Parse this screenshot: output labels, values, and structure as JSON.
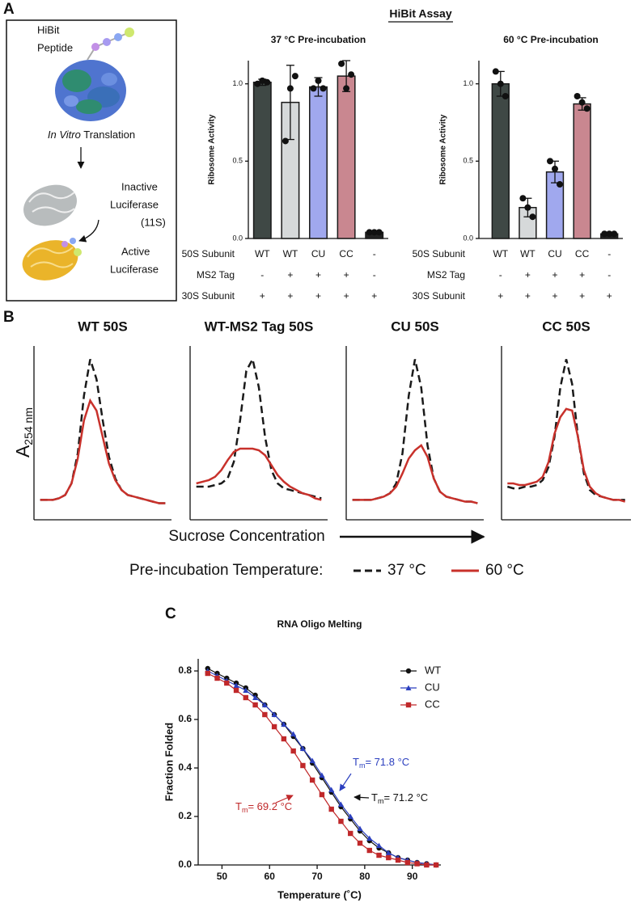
{
  "panel_labels": [
    "A",
    "B",
    "C"
  ],
  "schematic": {
    "peptide": [
      "HiBit",
      "Peptide"
    ],
    "translation": {
      "italic": "In Vitro",
      "text": "Translation"
    },
    "inactive": [
      "Inactive",
      "Luciferase",
      "(11S)"
    ],
    "active": [
      "Active",
      "Luciferase"
    ]
  },
  "hibit_title": "HiBit Assay",
  "panel_b": {
    "y_label": {
      "text": "A",
      "subscript": "254 nm"
    },
    "x_label": "Sucrose Concentration",
    "legend": {
      "title": "Pre-incubation Temperature:",
      "entries": [
        {
          "name": "37 °C",
          "color": "#1a1a1a",
          "dash": true
        },
        {
          "name": "60 °C",
          "color": "#c8312b",
          "dash": false
        }
      ]
    }
  },
  "chart_data": [
    {
      "type": "bar",
      "title": "37 °C Pre-incubation",
      "y_label": "Ribosome Activity",
      "category_label": "50S Subunit",
      "categories": [
        "WT",
        "WT",
        "CU",
        "CC",
        "-"
      ],
      "extra_rows": [
        {
          "label": "MS2 Tag",
          "cells": [
            "-",
            "+",
            "+",
            "+",
            "-"
          ]
        },
        {
          "label": "30S Subunit",
          "cells": [
            "+",
            "+",
            "+",
            "+",
            "+"
          ]
        }
      ],
      "values": [
        1.01,
        0.88,
        0.98,
        1.05,
        0.04
      ],
      "errors": [
        0.02,
        0.24,
        0.06,
        0.1,
        0.01
      ],
      "points": [
        [
          1.0,
          1.02,
          1.01
        ],
        [
          0.63,
          0.97,
          1.05
        ],
        [
          0.97,
          1.02,
          0.97
        ],
        [
          1.13,
          0.97,
          1.06
        ],
        [
          0.04,
          0.04,
          0.04
        ]
      ],
      "colors": [
        "#3f4845",
        "#d6d9da",
        "#a0a8ee",
        "#c98790",
        "#222222"
      ],
      "ylim": [
        0,
        1.15
      ],
      "yticks": [
        {
          "value": 0,
          "label": "0.0"
        },
        {
          "value": 0.5,
          "label": "0.5"
        },
        {
          "value": 1,
          "label": "1.0"
        }
      ]
    },
    {
      "type": "bar",
      "title": "60 °C Pre-incubation",
      "y_label": "Ribosome Activity",
      "category_label": "50S Subunit",
      "categories": [
        "WT",
        "WT",
        "CU",
        "CC",
        "-"
      ],
      "extra_rows": [
        {
          "label": "MS2 Tag",
          "cells": [
            "-",
            "+",
            "+",
            "+",
            "-"
          ]
        },
        {
          "label": "30S Subunit",
          "cells": [
            "+",
            "+",
            "+",
            "+",
            "+"
          ]
        }
      ],
      "values": [
        1.0,
        0.2,
        0.43,
        0.87,
        0.03
      ],
      "errors": [
        0.08,
        0.06,
        0.07,
        0.04,
        0.01
      ],
      "points": [
        [
          1.08,
          1.0,
          0.92
        ],
        [
          0.26,
          0.2,
          0.14
        ],
        [
          0.5,
          0.45,
          0.35
        ],
        [
          0.92,
          0.88,
          0.84
        ],
        [
          0.03,
          0.03,
          0.03
        ]
      ],
      "colors": [
        "#3f4845",
        "#d6d9da",
        "#a0a8ee",
        "#c98790",
        "#222222"
      ],
      "ylim": [
        0,
        1.15
      ],
      "yticks": [
        {
          "value": 0,
          "label": "0.0"
        },
        {
          "value": 0.5,
          "label": "0.5"
        },
        {
          "value": 1,
          "label": "1.0"
        }
      ]
    },
    {
      "type": "line",
      "title": "WT 50S",
      "x": [
        0,
        1,
        2,
        3,
        4,
        5,
        6,
        7,
        8,
        9,
        10,
        11,
        12,
        13,
        14,
        15,
        16,
        17,
        18,
        19,
        20
      ],
      "xlim": [
        -1,
        21
      ],
      "ylim": [
        0,
        1.05
      ],
      "series": [
        {
          "color": "#1a1a1a",
          "dash": true,
          "values": [
            0.12,
            0.12,
            0.12,
            0.13,
            0.15,
            0.22,
            0.4,
            0.75,
            0.97,
            0.85,
            0.6,
            0.38,
            0.25,
            0.18,
            0.15,
            0.14,
            0.13,
            0.12,
            0.11,
            0.1,
            0.1
          ]
        },
        {
          "color": "#c8312b",
          "dash": false,
          "values": [
            0.12,
            0.12,
            0.12,
            0.13,
            0.15,
            0.22,
            0.37,
            0.6,
            0.72,
            0.66,
            0.5,
            0.34,
            0.24,
            0.18,
            0.15,
            0.14,
            0.13,
            0.12,
            0.11,
            0.1,
            0.1
          ]
        }
      ]
    },
    {
      "type": "line",
      "title": "WT-MS2 Tag 50S",
      "x": [
        0,
        1,
        2,
        3,
        4,
        5,
        6,
        7,
        8,
        9,
        10,
        11,
        12,
        13,
        14,
        15,
        16,
        17,
        18,
        19,
        20
      ],
      "xlim": [
        -1,
        21
      ],
      "ylim": [
        0,
        1.05
      ],
      "series": [
        {
          "color": "#1a1a1a",
          "dash": true,
          "values": [
            0.2,
            0.2,
            0.2,
            0.21,
            0.22,
            0.25,
            0.35,
            0.6,
            0.9,
            0.97,
            0.8,
            0.5,
            0.3,
            0.22,
            0.19,
            0.18,
            0.17,
            0.16,
            0.15,
            0.14,
            0.13
          ]
        },
        {
          "color": "#c8312b",
          "dash": false,
          "values": [
            0.22,
            0.23,
            0.24,
            0.26,
            0.3,
            0.36,
            0.41,
            0.43,
            0.43,
            0.43,
            0.42,
            0.39,
            0.33,
            0.27,
            0.23,
            0.2,
            0.18,
            0.16,
            0.15,
            0.13,
            0.12
          ]
        }
      ]
    },
    {
      "type": "line",
      "title": "CU 50S",
      "x": [
        0,
        1,
        2,
        3,
        4,
        5,
        6,
        7,
        8,
        9,
        10,
        11,
        12,
        13,
        14,
        15,
        16,
        17,
        18,
        19,
        20
      ],
      "xlim": [
        -1,
        21
      ],
      "ylim": [
        0,
        1.05
      ],
      "series": [
        {
          "color": "#1a1a1a",
          "dash": true,
          "values": [
            0.12,
            0.12,
            0.12,
            0.12,
            0.13,
            0.14,
            0.16,
            0.22,
            0.4,
            0.75,
            0.97,
            0.8,
            0.45,
            0.25,
            0.17,
            0.14,
            0.13,
            0.12,
            0.11,
            0.11,
            0.1
          ]
        },
        {
          "color": "#c8312b",
          "dash": false,
          "values": [
            0.12,
            0.12,
            0.12,
            0.12,
            0.13,
            0.14,
            0.16,
            0.2,
            0.28,
            0.37,
            0.42,
            0.45,
            0.38,
            0.25,
            0.17,
            0.14,
            0.13,
            0.12,
            0.11,
            0.11,
            0.1
          ]
        }
      ]
    },
    {
      "type": "line",
      "title": "CC 50S",
      "x": [
        0,
        1,
        2,
        3,
        4,
        5,
        6,
        7,
        8,
        9,
        10,
        11,
        12,
        13,
        14,
        15,
        16,
        17,
        18,
        19,
        20
      ],
      "xlim": [
        -1,
        21
      ],
      "ylim": [
        0,
        1.05
      ],
      "series": [
        {
          "color": "#1a1a1a",
          "dash": true,
          "values": [
            0.2,
            0.19,
            0.19,
            0.2,
            0.2,
            0.21,
            0.24,
            0.32,
            0.5,
            0.8,
            0.97,
            0.82,
            0.5,
            0.28,
            0.18,
            0.15,
            0.14,
            0.13,
            0.12,
            0.12,
            0.12
          ]
        },
        {
          "color": "#c8312b",
          "dash": false,
          "values": [
            0.22,
            0.22,
            0.21,
            0.21,
            0.22,
            0.23,
            0.26,
            0.35,
            0.52,
            0.62,
            0.67,
            0.66,
            0.5,
            0.3,
            0.2,
            0.16,
            0.14,
            0.13,
            0.12,
            0.12,
            0.11
          ]
        }
      ]
    },
    {
      "type": "line",
      "title": "RNA Oligo Melting",
      "x_label": "Temperature (˚C)",
      "y_label": "Fraction Folded",
      "x": [
        47,
        49,
        51,
        53,
        55,
        57,
        59,
        61,
        63,
        65,
        67,
        69,
        71,
        73,
        75,
        77,
        79,
        81,
        83,
        85,
        87,
        89,
        91,
        93,
        95
      ],
      "xlim": [
        45,
        96
      ],
      "xticks": [
        50,
        60,
        70,
        80,
        90
      ],
      "ylim": [
        0,
        0.85
      ],
      "yticks": [
        {
          "value": 0,
          "label": "0.0"
        },
        {
          "value": 0.2,
          "label": "0.2"
        },
        {
          "value": 0.4,
          "label": "0.4"
        },
        {
          "value": 0.6,
          "label": "0.6"
        },
        {
          "value": 0.8,
          "label": "0.8"
        }
      ],
      "legend": true,
      "series": [
        {
          "name": "WT",
          "color": "#111111",
          "marker": "circle",
          "values": [
            0.81,
            0.79,
            0.77,
            0.75,
            0.73,
            0.7,
            0.66,
            0.62,
            0.58,
            0.53,
            0.48,
            0.42,
            0.36,
            0.3,
            0.24,
            0.19,
            0.14,
            0.1,
            0.07,
            0.05,
            0.03,
            0.02,
            0.01,
            0.005,
            0
          ]
        },
        {
          "name": "CU",
          "color": "#2b3fbf",
          "marker": "triangle",
          "values": [
            0.8,
            0.78,
            0.76,
            0.74,
            0.72,
            0.69,
            0.66,
            0.62,
            0.58,
            0.54,
            0.48,
            0.43,
            0.37,
            0.31,
            0.25,
            0.2,
            0.15,
            0.11,
            0.08,
            0.05,
            0.03,
            0.02,
            0.01,
            0.005,
            0
          ]
        },
        {
          "name": "CC",
          "color": "#c0282a",
          "marker": "square",
          "values": [
            0.79,
            0.77,
            0.75,
            0.72,
            0.69,
            0.66,
            0.62,
            0.57,
            0.52,
            0.47,
            0.41,
            0.35,
            0.29,
            0.23,
            0.18,
            0.13,
            0.09,
            0.06,
            0.04,
            0.03,
            0.02,
            0.01,
            0.005,
            0,
            0
          ]
        }
      ],
      "annotations": [
        {
          "symbol": "T",
          "subscript": "m",
          "text": "= 71.8 °C",
          "color": "#2b3fbf"
        },
        {
          "symbol": "T",
          "subscript": "m",
          "text": "= 71.2 °C",
          "color": "#111111"
        },
        {
          "symbol": "T",
          "subscript": "m",
          "text": "= 69.2 °C",
          "color": "#c0282a"
        }
      ]
    }
  ]
}
